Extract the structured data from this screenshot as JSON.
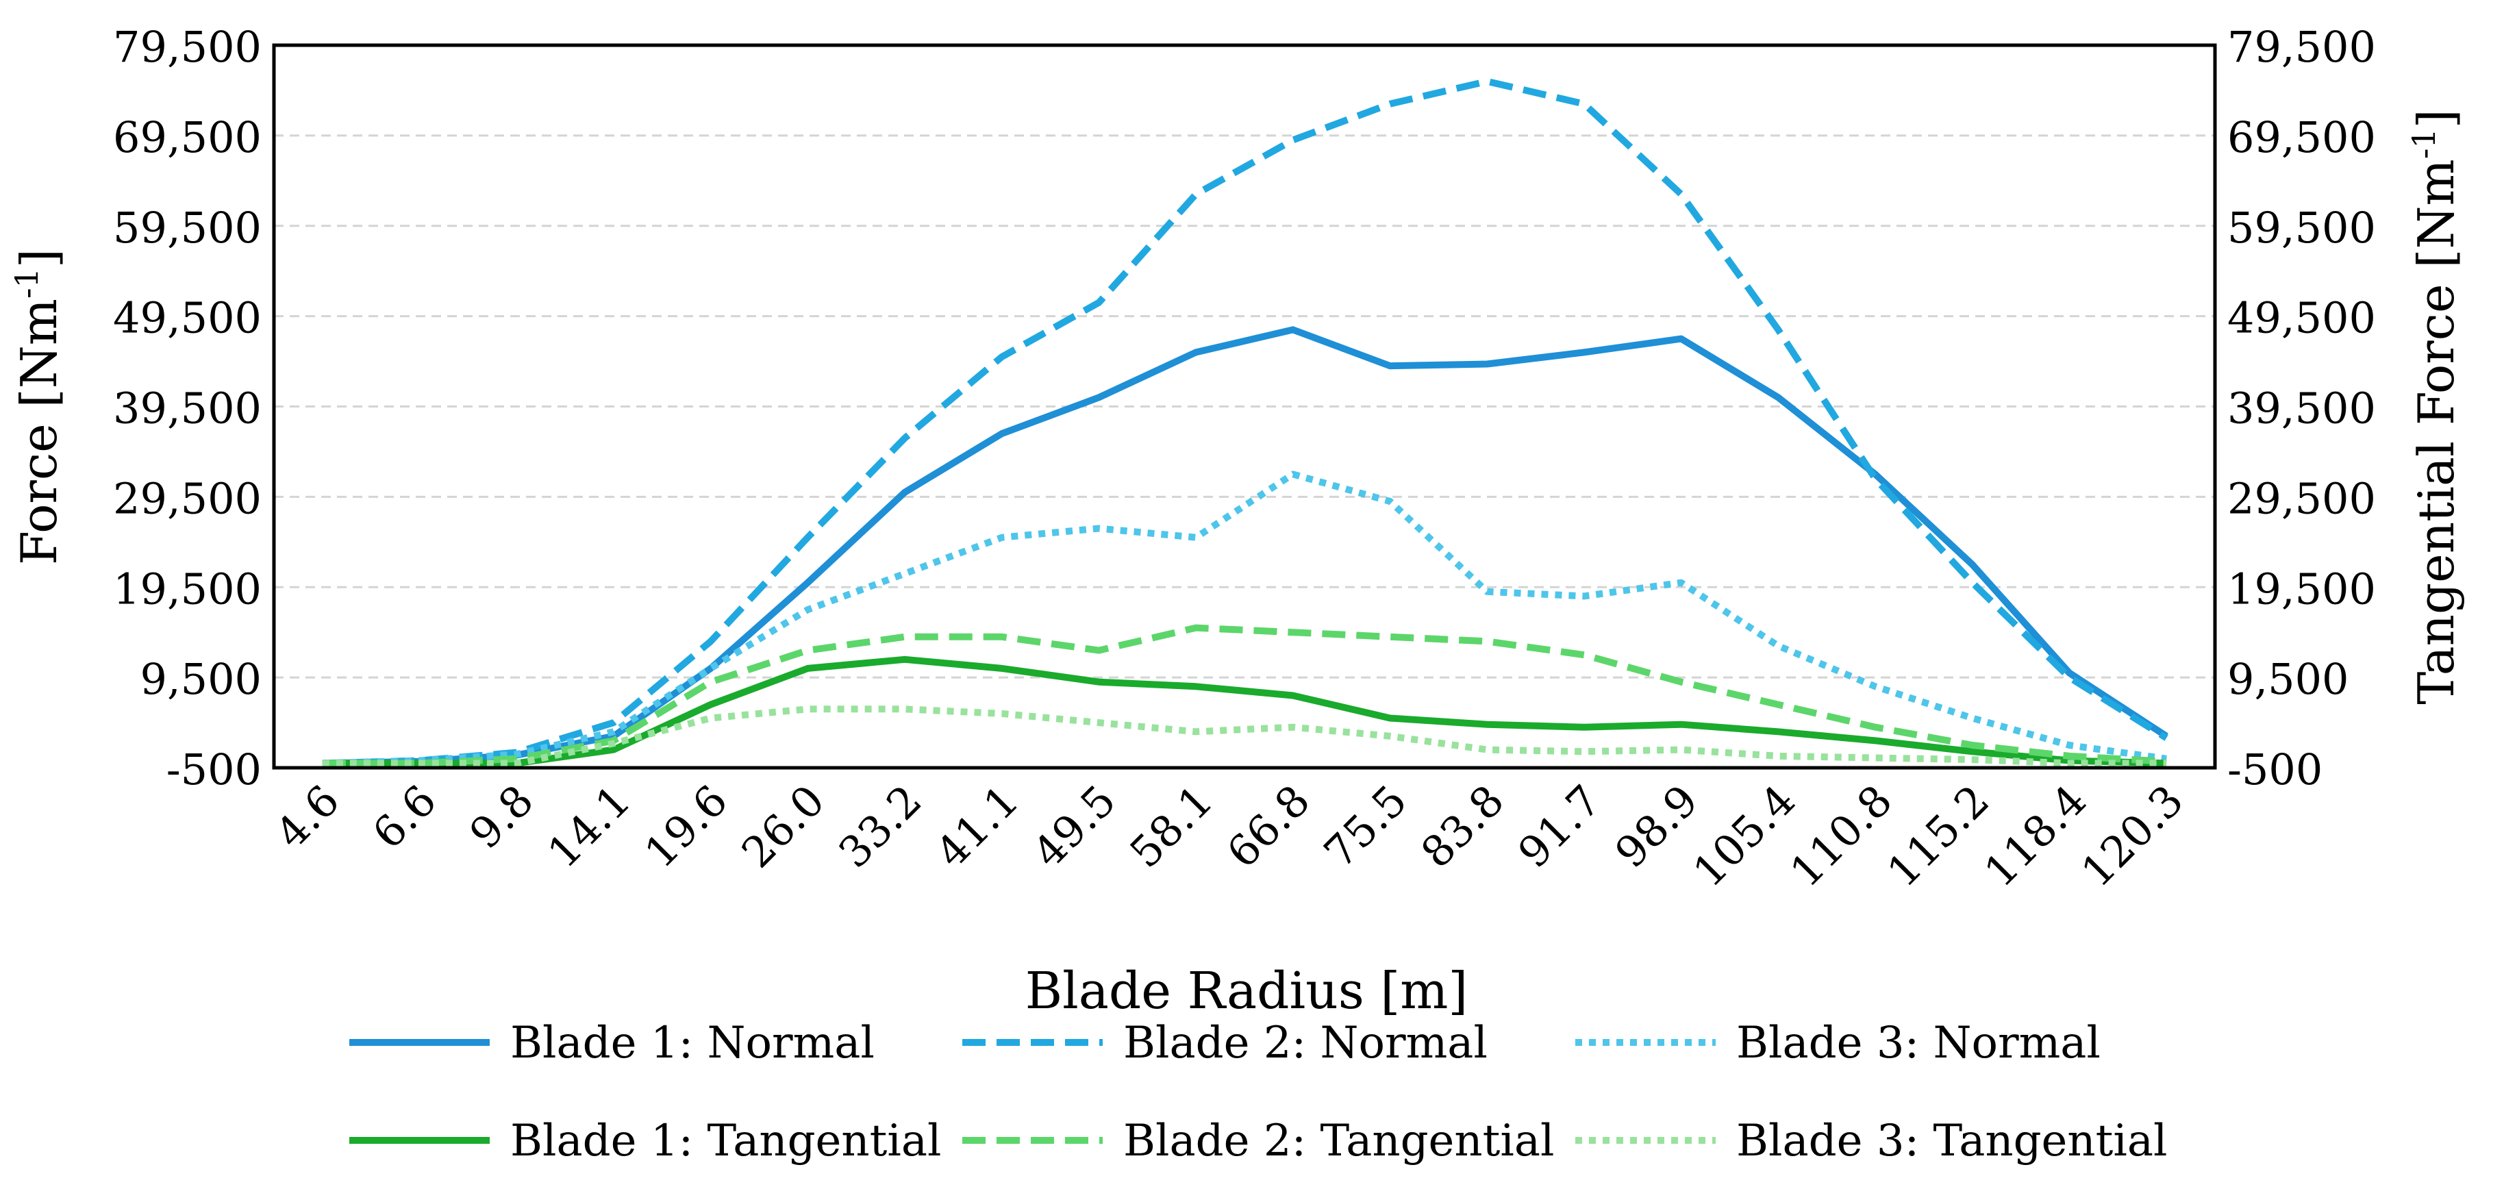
{
  "chart_data": {
    "type": "line",
    "xlabel": "Blade Radius [m]",
    "ylabel_left_prefix": "Force [Nm",
    "ylabel_right_prefix": "Tangential Force [Nm",
    "ylabel_sup": "-1",
    "ylabel_suffix": "]",
    "ylim": [
      -500,
      79500
    ],
    "yticks": [
      -500,
      9500,
      19500,
      29500,
      39500,
      49500,
      59500,
      69500,
      79500
    ],
    "ytick_labels": [
      "-500",
      "9,500",
      "19,500",
      "29,500",
      "39,500",
      "49,500",
      "59,500",
      "69,500",
      "79,500"
    ],
    "grid": true,
    "categories": [
      "4.6",
      "6.6",
      "9.8",
      "14.1",
      "19.6",
      "26.0",
      "33.2",
      "41.1",
      "49.5",
      "58.1",
      "66.8",
      "75.5",
      "83.8",
      "91.7",
      "98.9",
      "105.4",
      "110.8",
      "115.2",
      "118.4",
      "120.3"
    ],
    "legend_position": "bottom",
    "series": [
      {
        "name": "Blade 1: Normal",
        "color": "#1f8fd6",
        "style": "solid",
        "values": [
          0,
          200,
          900,
          3000,
          10500,
          20000,
          30000,
          36500,
          40500,
          45500,
          48000,
          44000,
          44200,
          45500,
          47000,
          40500,
          32000,
          22000,
          10000,
          3000
        ]
      },
      {
        "name": "Blade 2: Normal",
        "color": "#21a8e0",
        "style": "dashed",
        "values": [
          0,
          300,
          1200,
          4500,
          13500,
          25000,
          36000,
          45000,
          51000,
          63000,
          69000,
          73000,
          75500,
          73000,
          63000,
          48000,
          31500,
          20000,
          9500,
          2800
        ]
      },
      {
        "name": "Blade 3: Normal",
        "color": "#4ec5ea",
        "style": "dotted",
        "values": [
          0,
          300,
          1000,
          3500,
          10500,
          17000,
          21000,
          25000,
          26000,
          25000,
          32000,
          29000,
          19000,
          18500,
          20000,
          13000,
          8500,
          5000,
          2000,
          500
        ]
      },
      {
        "name": "Blade 1: Tangential",
        "color": "#1aaa2c",
        "style": "solid",
        "values": [
          0,
          0,
          0,
          1500,
          6500,
          10500,
          11500,
          10500,
          9000,
          8500,
          7500,
          5000,
          4300,
          4000,
          4300,
          3500,
          2500,
          1300,
          300,
          0
        ]
      },
      {
        "name": "Blade 2: Tangential",
        "color": "#5cd66a",
        "style": "dashed",
        "values": [
          0,
          0,
          500,
          2500,
          9000,
          12500,
          14000,
          14000,
          12500,
          15000,
          14500,
          14000,
          13500,
          12000,
          9000,
          6500,
          4000,
          2000,
          800,
          200
        ]
      },
      {
        "name": "Blade 3: Tangential",
        "color": "#98e29d",
        "style": "dotted",
        "values": [
          0,
          0,
          0,
          2200,
          5000,
          6000,
          6000,
          5500,
          4500,
          3500,
          4000,
          3000,
          1500,
          1300,
          1500,
          800,
          600,
          400,
          0,
          0
        ]
      }
    ]
  }
}
